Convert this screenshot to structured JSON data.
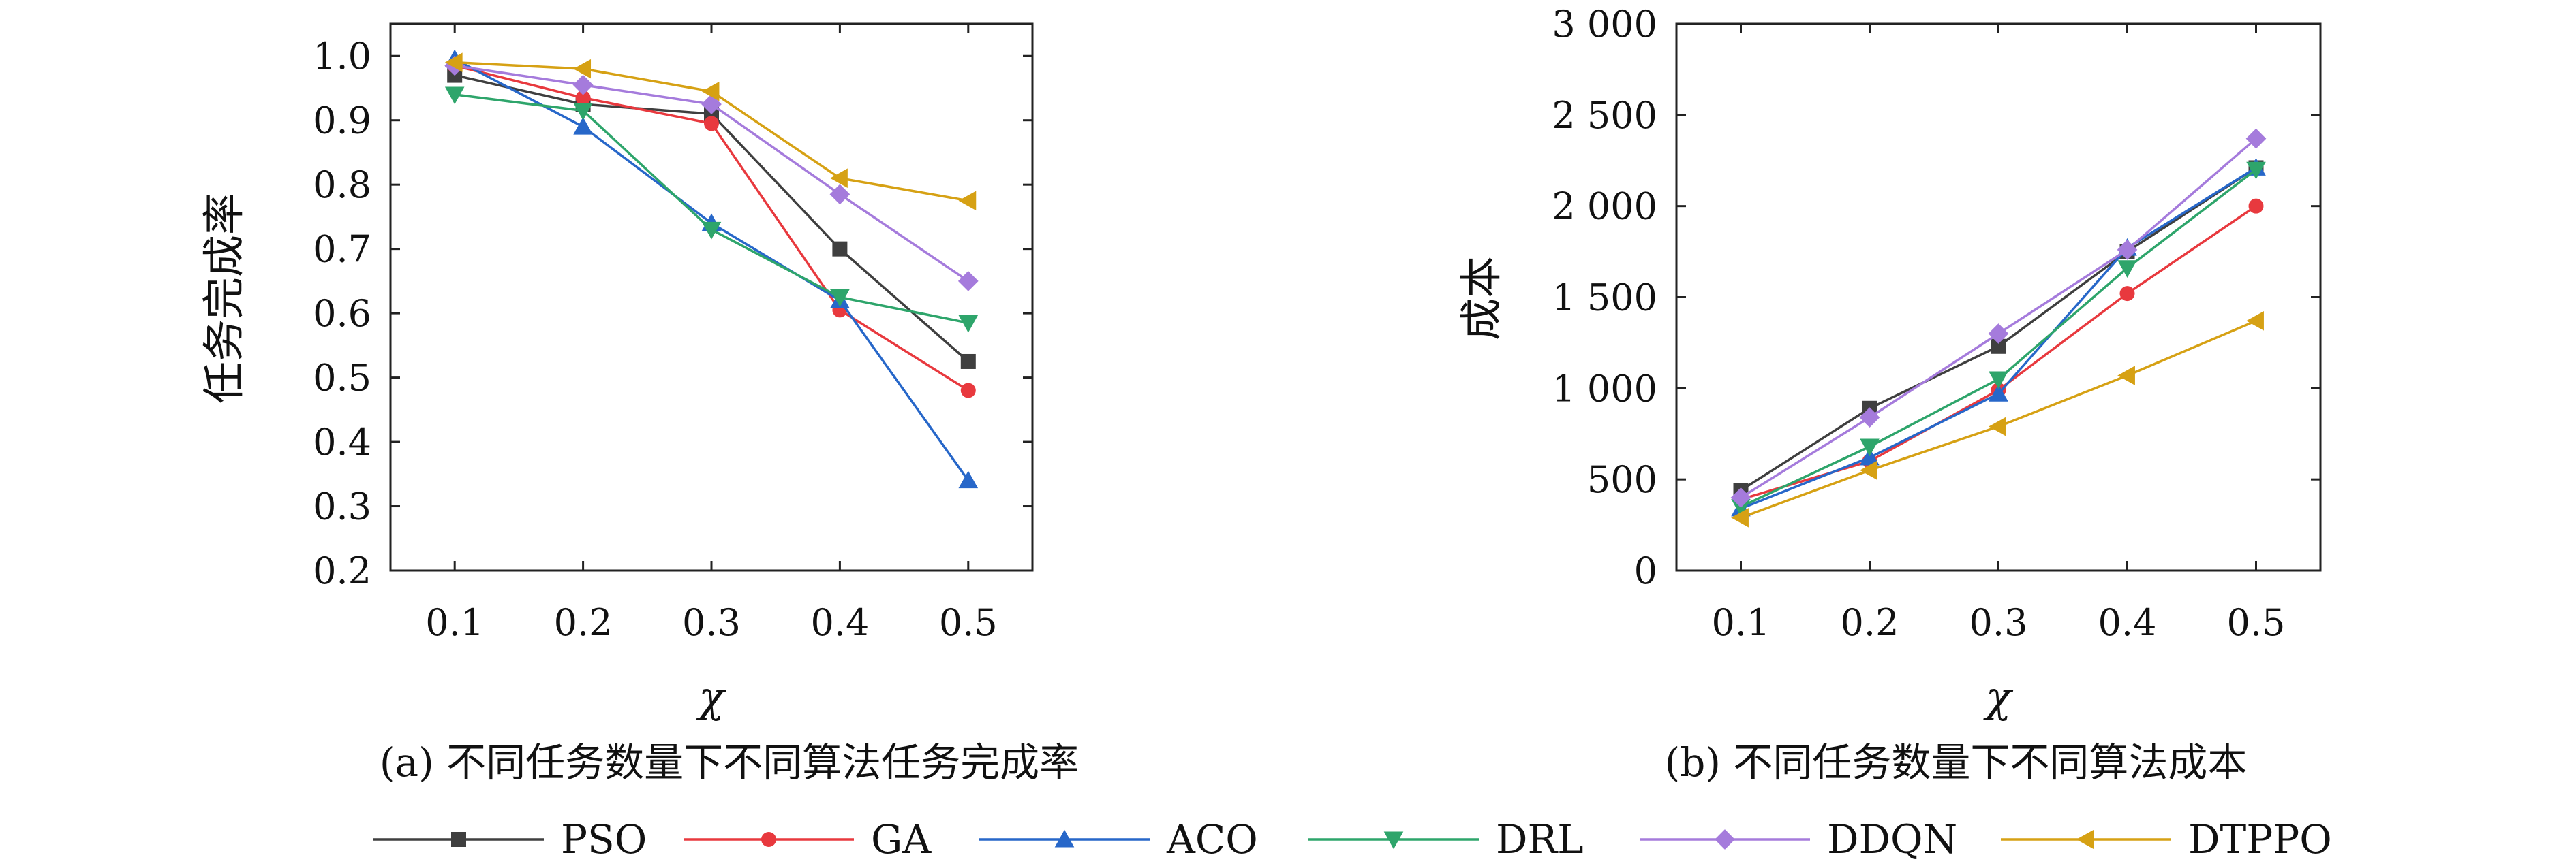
{
  "chart_data": [
    {
      "type": "line",
      "panel": "a",
      "caption": "(a) 不同任务数量下不同算法任务完成率",
      "xlabel": "χ",
      "ylabel": "任务完成率",
      "x": [
        0.1,
        0.2,
        0.3,
        0.4,
        0.5
      ],
      "x_tick_labels": [
        "0.1",
        "0.2",
        "0.3",
        "0.4",
        "0.5"
      ],
      "xlim": [
        0.05,
        0.55
      ],
      "ylim": [
        0.2,
        1.05
      ],
      "y_ticks": [
        0.2,
        0.3,
        0.4,
        0.5,
        0.6,
        0.7,
        0.8,
        0.9,
        1.0
      ],
      "y_tick_labels": [
        "0.2",
        "0.3",
        "0.4",
        "0.5",
        "0.6",
        "0.7",
        "0.8",
        "0.9",
        "1.0"
      ],
      "grid": false,
      "series": [
        {
          "name": "PSO",
          "values": [
            0.97,
            0.925,
            0.91,
            0.7,
            0.525
          ]
        },
        {
          "name": "GA",
          "values": [
            0.985,
            0.935,
            0.895,
            0.605,
            0.48
          ]
        },
        {
          "name": "ACO",
          "values": [
            0.995,
            0.89,
            0.74,
            0.62,
            0.34
          ]
        },
        {
          "name": "DRL",
          "values": [
            0.94,
            0.915,
            0.73,
            0.625,
            0.585
          ]
        },
        {
          "name": "DDQN",
          "values": [
            0.985,
            0.955,
            0.925,
            0.785,
            0.65
          ]
        },
        {
          "name": "DTPPO",
          "values": [
            0.99,
            0.98,
            0.945,
            0.81,
            0.775
          ]
        }
      ]
    },
    {
      "type": "line",
      "panel": "b",
      "caption": "(b) 不同任务数量下不同算法成本",
      "xlabel": "χ",
      "ylabel": "成本",
      "x": [
        0.1,
        0.2,
        0.3,
        0.4,
        0.5
      ],
      "x_tick_labels": [
        "0.1",
        "0.2",
        "0.3",
        "0.4",
        "0.5"
      ],
      "xlim": [
        0.05,
        0.55
      ],
      "ylim": [
        0,
        3000
      ],
      "y_ticks": [
        0,
        500,
        1000,
        1500,
        2000,
        2500,
        3000
      ],
      "y_tick_labels": [
        "0",
        "500",
        "1 000",
        "1 500",
        "2 000",
        "2 500",
        "3 000"
      ],
      "grid": false,
      "series": [
        {
          "name": "PSO",
          "values": [
            440,
            890,
            1230,
            1750,
            2210
          ]
        },
        {
          "name": "GA",
          "values": [
            390,
            600,
            990,
            1520,
            2000
          ]
        },
        {
          "name": "ACO",
          "values": [
            340,
            620,
            970,
            1770,
            2210
          ]
        },
        {
          "name": "DRL",
          "values": [
            350,
            680,
            1050,
            1660,
            2200
          ]
        },
        {
          "name": "DDQN",
          "values": [
            400,
            840,
            1300,
            1760,
            2370
          ]
        },
        {
          "name": "DTPPO",
          "values": [
            290,
            550,
            790,
            1070,
            1370
          ]
        }
      ]
    }
  ],
  "legend": {
    "placement": "bottom",
    "items": [
      {
        "name": "PSO",
        "color": "#3f3f3f",
        "marker": "square"
      },
      {
        "name": "GA",
        "color": "#e8393e",
        "marker": "circle"
      },
      {
        "name": "ACO",
        "color": "#2767c9",
        "marker": "triangle-up"
      },
      {
        "name": "DRL",
        "color": "#2ea56b",
        "marker": "triangle-down"
      },
      {
        "name": "DDQN",
        "color": "#a57bdc",
        "marker": "diamond"
      },
      {
        "name": "DTPPO",
        "color": "#d6a114",
        "marker": "triangle-left"
      }
    ]
  }
}
